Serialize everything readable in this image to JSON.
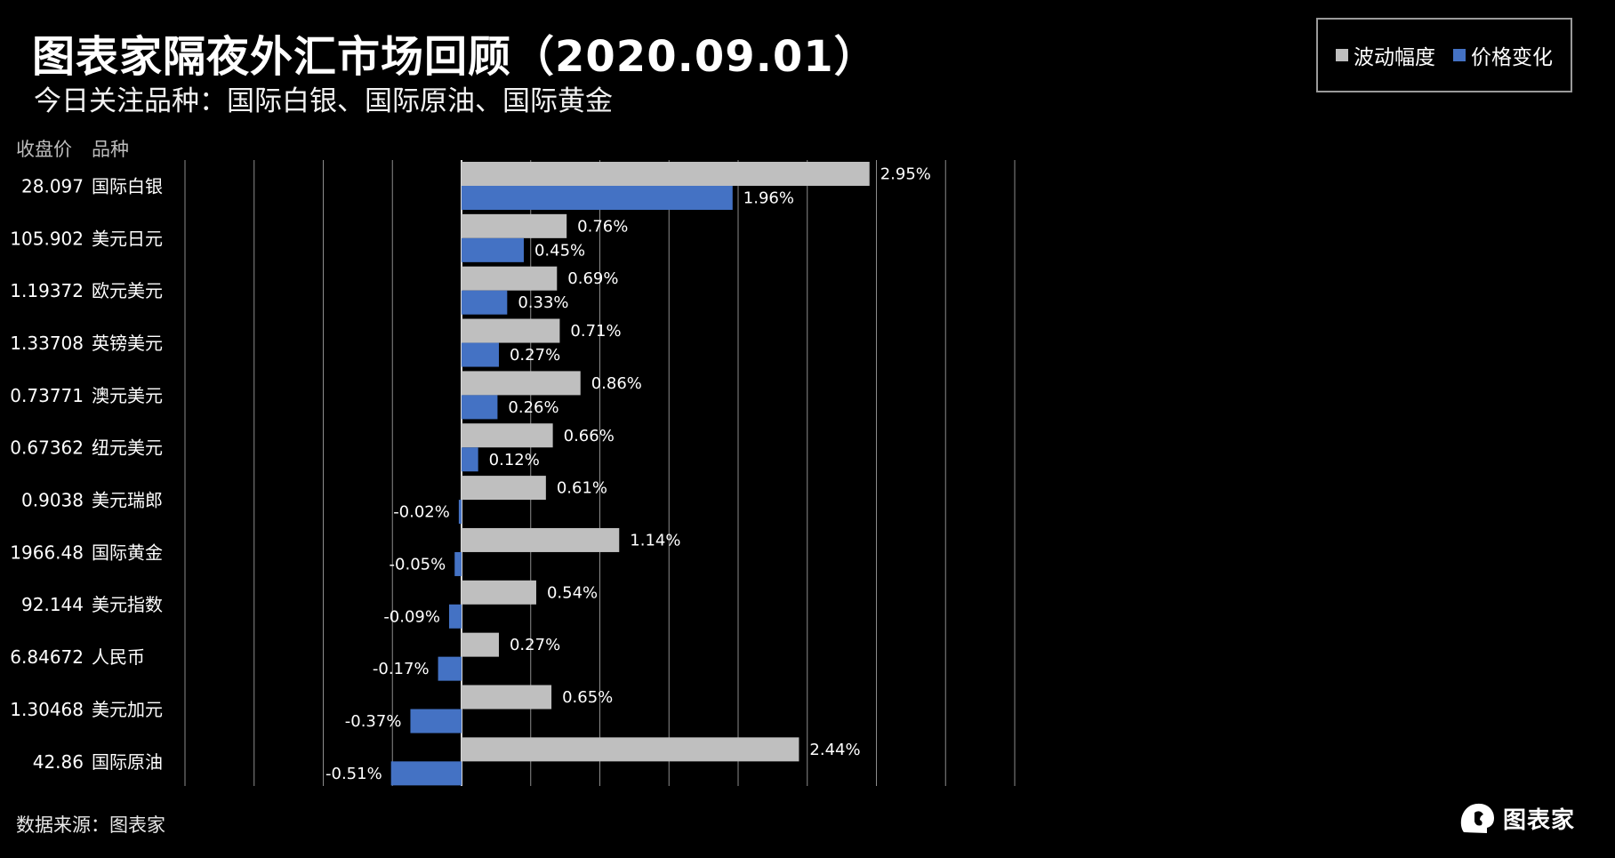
{
  "header": {
    "title": "图表家隔夜外汇市场回顾（2020.09.01）",
    "subtitle": "今日关注品种：国际白银、国际原油、国际黄金"
  },
  "legend": {
    "items": [
      {
        "label": "波动幅度",
        "color": "#bfbfbf"
      },
      {
        "label": "价格变化",
        "color": "#4472c4"
      }
    ]
  },
  "columns": {
    "close_header": "收盘价",
    "name_header": "品种"
  },
  "footer": {
    "source": "数据来源：图表家",
    "logo_text": "图表家"
  },
  "colors": {
    "amplitude": "#bfbfbf",
    "change": "#4472c4",
    "grid": "#8c8c8c",
    "background": "#000000"
  },
  "chart_data": {
    "type": "bar",
    "orientation": "horizontal",
    "unit": "%",
    "xlim": [
      -4.0,
      4.0
    ],
    "grid_step": 0.5,
    "grid": true,
    "legend_position": "top-right",
    "rows": [
      {
        "close": "28.097",
        "name": "国际白银",
        "amplitude": 2.95,
        "change": 1.96
      },
      {
        "close": "105.902",
        "name": "美元日元",
        "amplitude": 0.76,
        "change": 0.45
      },
      {
        "close": "1.19372",
        "name": "欧元美元",
        "amplitude": 0.69,
        "change": 0.33
      },
      {
        "close": "1.33708",
        "name": "英镑美元",
        "amplitude": 0.71,
        "change": 0.27
      },
      {
        "close": "0.73771",
        "name": "澳元美元",
        "amplitude": 0.86,
        "change": 0.26
      },
      {
        "close": "0.67362",
        "name": "纽元美元",
        "amplitude": 0.66,
        "change": 0.12
      },
      {
        "close": "0.9038",
        "name": "美元瑞郎",
        "amplitude": 0.61,
        "change": -0.02
      },
      {
        "close": "1966.48",
        "name": "国际黄金",
        "amplitude": 1.14,
        "change": -0.05
      },
      {
        "close": "92.144",
        "name": "美元指数",
        "amplitude": 0.54,
        "change": -0.09
      },
      {
        "close": "6.84672",
        "name": "人民币",
        "amplitude": 0.27,
        "change": -0.17
      },
      {
        "close": "1.30468",
        "name": "美元加元",
        "amplitude": 0.65,
        "change": -0.37
      },
      {
        "close": "42.86",
        "name": "国际原油",
        "amplitude": 2.44,
        "change": -0.51
      }
    ]
  }
}
